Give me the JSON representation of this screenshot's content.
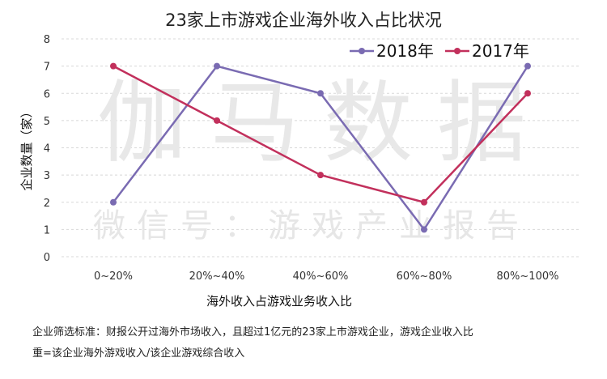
{
  "chart_data": {
    "type": "line",
    "title": "23家上市游戏企业海外收入占比状况",
    "xlabel": "海外收入占游戏业务收入比",
    "ylabel": "企业数量（家）",
    "categories": [
      "0~20%",
      "20%~40%",
      "40%~60%",
      "60%~80%",
      "80%~100%"
    ],
    "ylim": [
      0,
      8
    ],
    "yticks": [
      "0",
      "1",
      "2",
      "3",
      "4",
      "5",
      "6",
      "7",
      "8"
    ],
    "grid": true,
    "legend_position": "top-right",
    "series": [
      {
        "name": "2018年",
        "color": "#7a6bb2",
        "values": [
          2,
          7,
          6,
          1,
          7
        ]
      },
      {
        "name": "2017年",
        "color": "#c2305c",
        "values": [
          7,
          5,
          3,
          2,
          6
        ]
      }
    ]
  },
  "watermark": {
    "main": "伽马数据",
    "sub": "微信号：游戏产业报告"
  },
  "footnote": {
    "line1": "企业筛选标准：财报公开过海外市场收入，且超过1亿元的23家上市游戏企业，游戏企业收入比",
    "line2": "重=该企业海外游戏收入/该企业游戏综合收入"
  }
}
